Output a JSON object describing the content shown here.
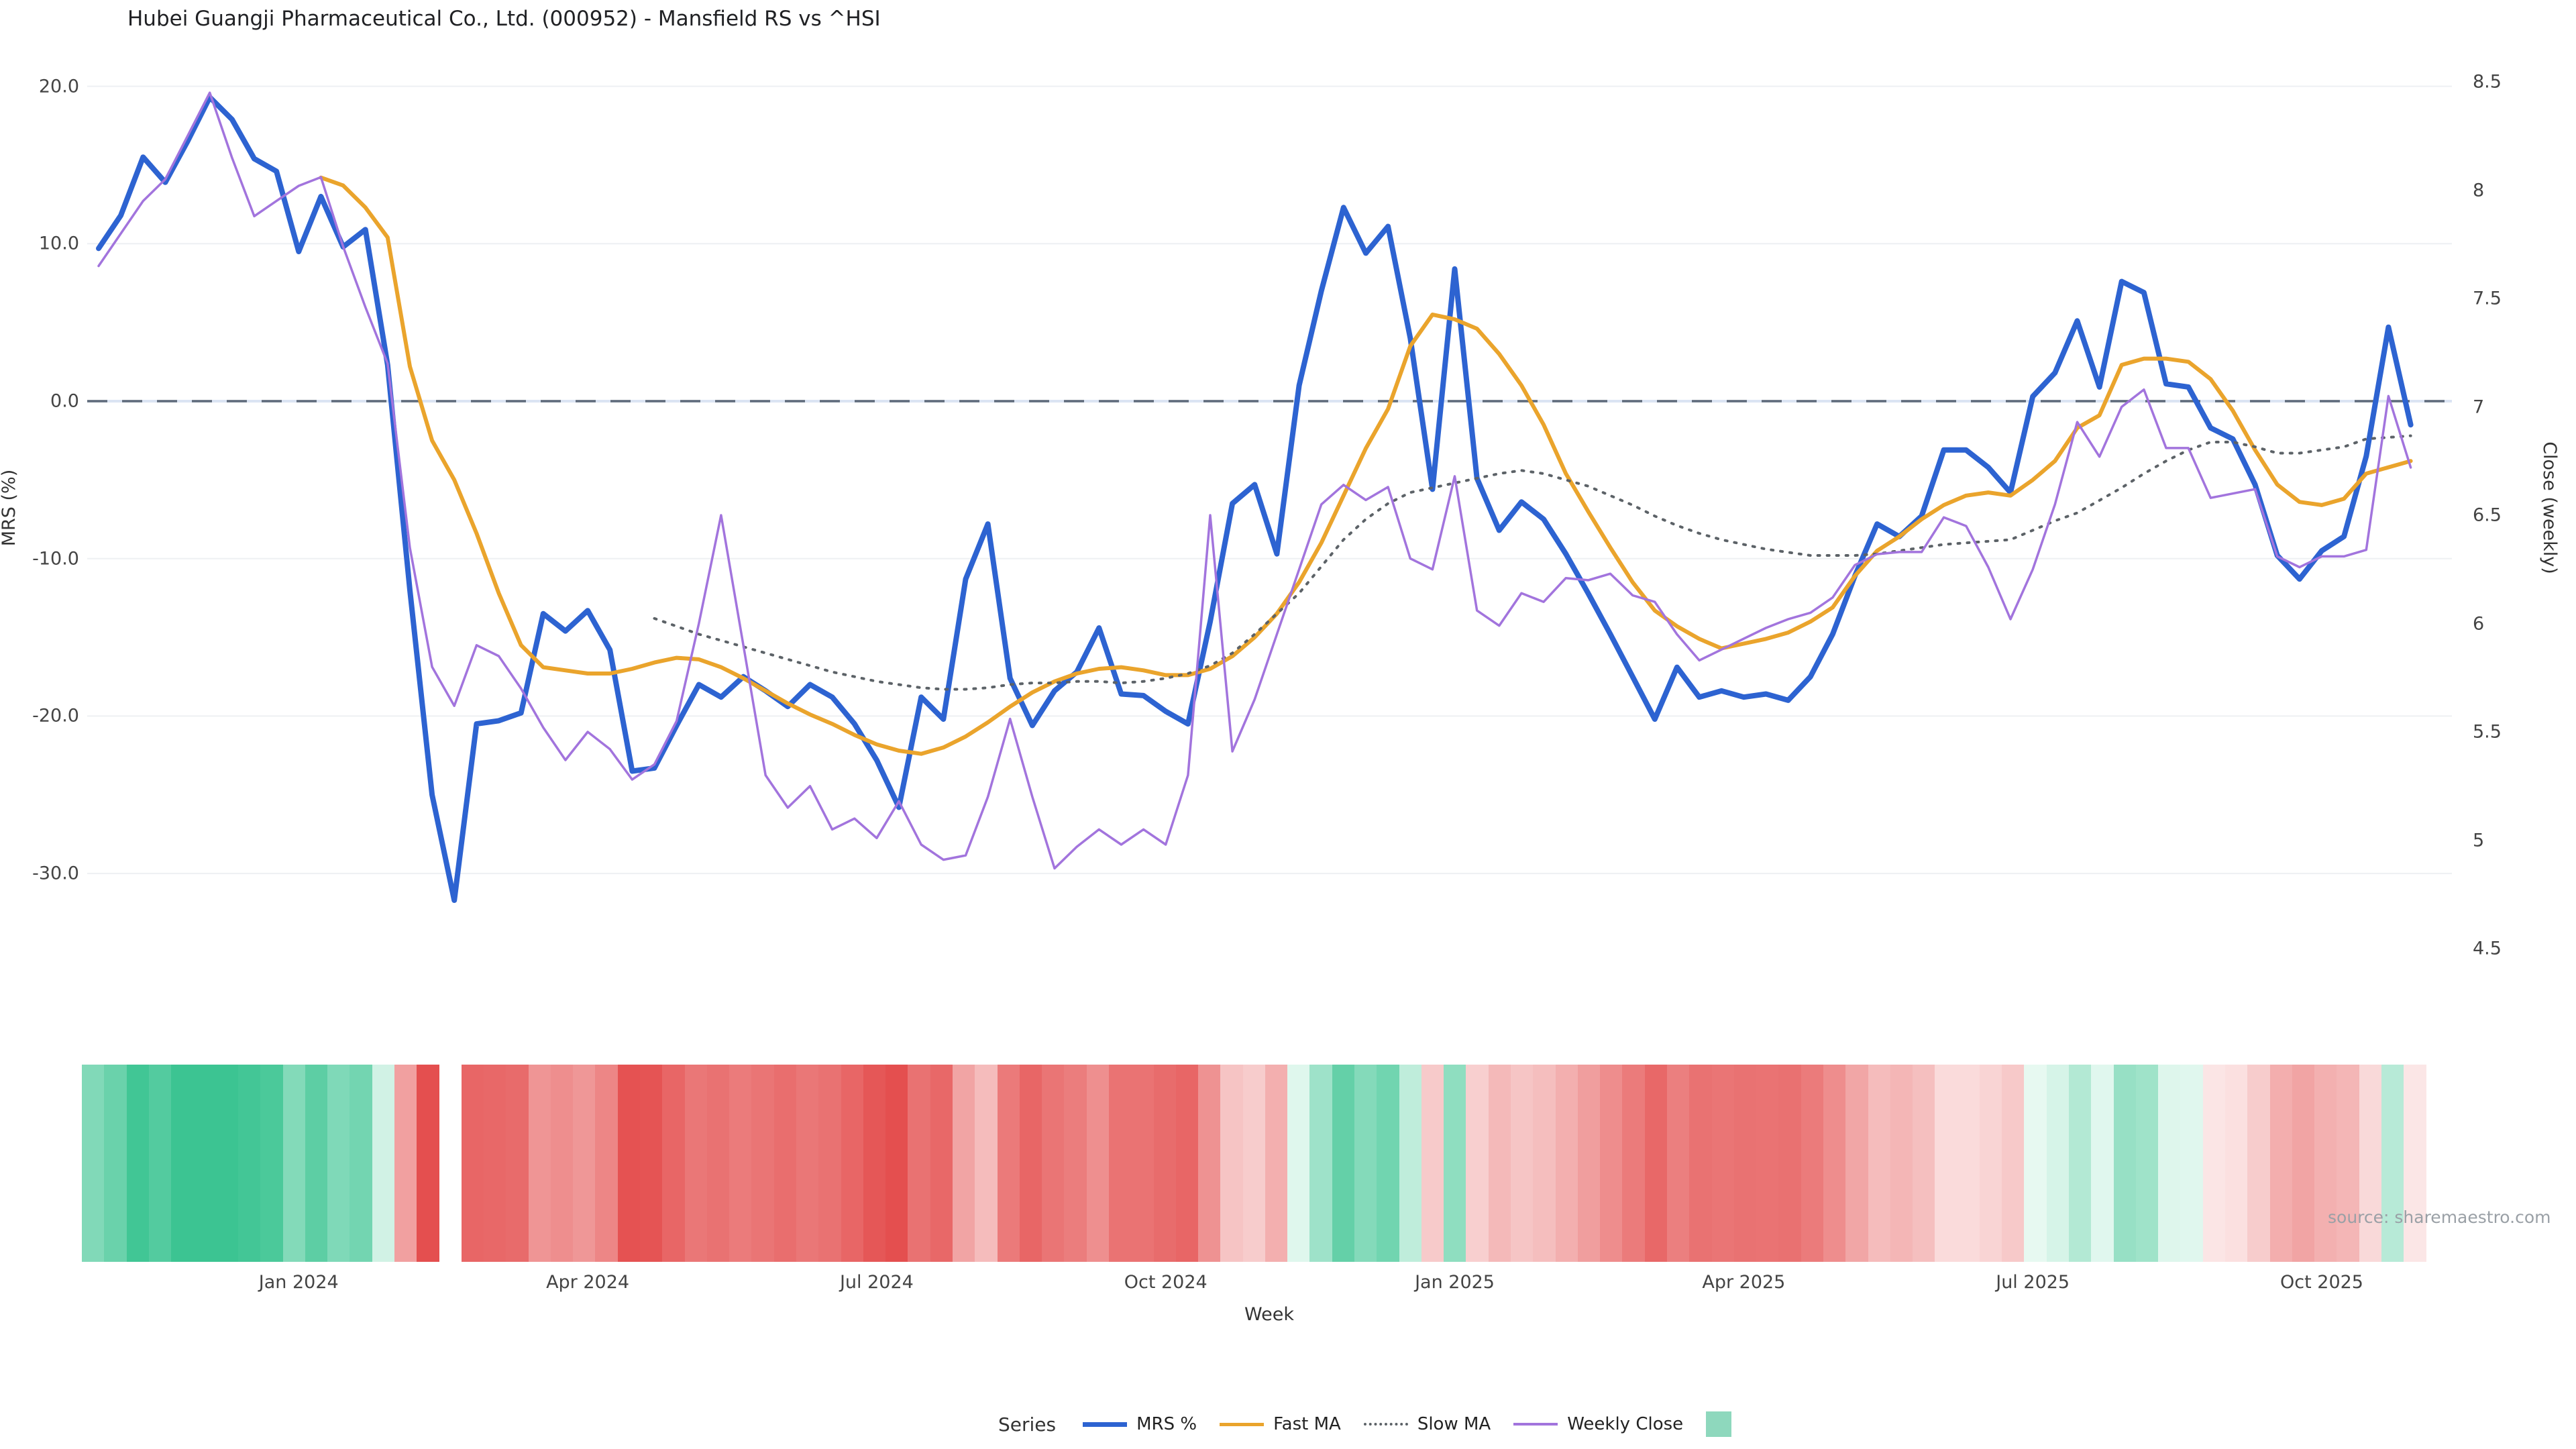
{
  "title": "Hubei Guangji Pharmaceutical Co., Ltd. (000952) - Mansfield RS vs ^HSI",
  "source_note": "source: sharemaestro.com",
  "axes": {
    "left": {
      "label": "MRS (%)",
      "ticks": [
        20.0,
        10.0,
        0.0,
        -10.0,
        -20.0,
        -30.0
      ]
    },
    "right": {
      "label": "Close (weekly)",
      "ticks": [
        8.5,
        8,
        7.5,
        7,
        6.5,
        6,
        5.5,
        5,
        4.5
      ]
    },
    "x": {
      "label": "Week",
      "tick_labels": [
        "Jan 2024",
        "Apr 2024",
        "Jul 2024",
        "Oct 2024",
        "Jan 2025",
        "Apr 2025",
        "Jul 2025",
        "Oct 2025"
      ],
      "tick_weeks": [
        9,
        22,
        35,
        48,
        61,
        74,
        87,
        100
      ]
    }
  },
  "legend": {
    "title": "Series",
    "items": [
      {
        "label": "MRS %",
        "swatch": "line",
        "color": "#2d63d1",
        "thickness": 7,
        "dash": ""
      },
      {
        "label": "Fast MA",
        "swatch": "line",
        "color": "#eaa42c",
        "thickness": 5,
        "dash": ""
      },
      {
        "label": "Slow MA",
        "swatch": "dotted",
        "color": "#5c6267",
        "thickness": 4,
        "dash": "3 9"
      },
      {
        "label": "Weekly Close",
        "swatch": "line",
        "color": "#a274dd",
        "thickness": 4,
        "dash": ""
      },
      {
        "label": "",
        "swatch": "square",
        "color": "#8ed8bd"
      }
    ]
  },
  "colors": {
    "mrs_line": "#2d63d1",
    "fast_ma": "#eaa42c",
    "slow_ma": "#5c6267",
    "weekly_close": "#a274dd",
    "zero_dash": "#5f6b7b",
    "zero_underlay": "#dbe4f3",
    "gridline": "#eef0f3",
    "heat_green_strong": "#3cc492",
    "heat_green_pale": "#eafaf3",
    "heat_red_strong": "#e44f4f",
    "heat_red_pale": "#fdf0f0",
    "heat_gap": "#ffffff"
  },
  "chart_data": {
    "type": "line",
    "x_unit": "week_index",
    "n_weeks": 105,
    "left_axis_range": [
      -35,
      22
    ],
    "right_axis_range": [
      4.5,
      8.5
    ],
    "grid": true,
    "zero_reference_line": 0.0,
    "series": [
      {
        "name": "MRS %",
        "axis": "left",
        "style": "solid",
        "values": [
          9.7,
          11.8,
          15.5,
          13.9,
          16.5,
          19.3,
          17.9,
          15.4,
          14.6,
          9.5,
          13.0,
          9.8,
          10.9,
          2.3,
          -12.0,
          -25.0,
          -31.7,
          -20.5,
          -20.3,
          -19.8,
          -13.5,
          -14.6,
          -13.3,
          -15.8,
          -23.5,
          -23.3,
          -20.6,
          -18.0,
          -18.8,
          -17.5,
          -18.4,
          -19.4,
          -18.0,
          -18.8,
          -20.5,
          -22.8,
          -25.8,
          -18.8,
          -20.2,
          -11.3,
          -7.8,
          -17.6,
          -20.6,
          -18.4,
          -17.2,
          -14.4,
          -18.6,
          -18.7,
          -19.7,
          -20.5,
          -14.0,
          -6.5,
          -5.3,
          -9.7,
          1.0,
          7.0,
          12.3,
          9.4,
          11.1,
          4.0,
          -5.6,
          8.4,
          -4.9,
          -8.2,
          -6.4,
          -7.5,
          -9.7,
          -12.2,
          -14.8,
          -17.5,
          -20.2,
          -16.9,
          -18.8,
          -18.4,
          -18.8,
          -18.6,
          -19.0,
          -17.5,
          -14.8,
          -11.1,
          -7.8,
          -8.6,
          -7.3,
          -3.1,
          -3.1,
          -4.2,
          -5.8,
          0.3,
          1.8,
          5.1,
          0.9,
          7.6,
          6.9,
          1.1,
          0.9,
          -1.7,
          -2.4,
          -5.3,
          -9.8,
          -11.3,
          -9.5,
          -8.6,
          -3.5,
          4.7,
          -1.5
        ]
      },
      {
        "name": "Fast MA",
        "axis": "left",
        "style": "solid",
        "values": [
          null,
          null,
          null,
          null,
          null,
          null,
          null,
          null,
          null,
          null,
          14.2,
          13.7,
          12.3,
          10.4,
          2.2,
          -2.5,
          -5.0,
          -8.4,
          -12.2,
          -15.5,
          -16.9,
          -17.1,
          -17.3,
          -17.3,
          -17.0,
          -16.6,
          -16.3,
          -16.4,
          -16.9,
          -17.6,
          -18.4,
          -19.2,
          -19.9,
          -20.5,
          -21.2,
          -21.8,
          -22.2,
          -22.4,
          -22.0,
          -21.3,
          -20.4,
          -19.4,
          -18.5,
          -17.8,
          -17.3,
          -17.0,
          -16.9,
          -17.1,
          -17.4,
          -17.4,
          -17.0,
          -16.2,
          -15.0,
          -13.5,
          -11.5,
          -9.0,
          -6.0,
          -3.0,
          -0.5,
          3.5,
          5.5,
          5.2,
          4.6,
          3.0,
          1.0,
          -1.5,
          -4.6,
          -7.0,
          -9.3,
          -11.5,
          -13.3,
          -14.3,
          -15.1,
          -15.7,
          -15.4,
          -15.1,
          -14.7,
          -14.0,
          -13.1,
          -11.1,
          -9.5,
          -8.6,
          -7.5,
          -6.6,
          -6.0,
          -5.8,
          -6.0,
          -5.0,
          -3.8,
          -1.7,
          -0.9,
          2.3,
          2.7,
          2.7,
          2.5,
          1.4,
          -0.6,
          -3.1,
          -5.3,
          -6.4,
          -6.6,
          -6.2,
          -4.6,
          -4.2,
          -3.8
        ]
      },
      {
        "name": "Slow MA",
        "axis": "left",
        "style": "dotted",
        "values": [
          null,
          null,
          null,
          null,
          null,
          null,
          null,
          null,
          null,
          null,
          null,
          null,
          null,
          null,
          null,
          null,
          null,
          null,
          null,
          null,
          null,
          null,
          null,
          null,
          null,
          -13.8,
          -14.3,
          -14.8,
          -15.2,
          -15.6,
          -16.0,
          -16.4,
          -16.8,
          -17.2,
          -17.5,
          -17.8,
          -18.0,
          -18.2,
          -18.3,
          -18.3,
          -18.2,
          -18.0,
          -17.9,
          -17.9,
          -17.8,
          -17.8,
          -17.9,
          -17.8,
          -17.6,
          -17.3,
          -16.8,
          -16.0,
          -14.8,
          -13.5,
          -12.2,
          -10.5,
          -8.8,
          -7.5,
          -6.5,
          -5.8,
          -5.5,
          -5.2,
          -4.9,
          -4.6,
          -4.4,
          -4.6,
          -5.0,
          -5.4,
          -6.0,
          -6.6,
          -7.3,
          -7.9,
          -8.4,
          -8.8,
          -9.1,
          -9.4,
          -9.6,
          -9.8,
          -9.8,
          -9.8,
          -9.7,
          -9.5,
          -9.3,
          -9.1,
          -9.0,
          -8.9,
          -8.8,
          -8.2,
          -7.6,
          -7.1,
          -6.3,
          -5.5,
          -4.6,
          -3.8,
          -3.1,
          -2.6,
          -2.6,
          -2.9,
          -3.3,
          -3.3,
          -3.1,
          -2.9,
          -2.4,
          -2.3,
          -2.2
        ]
      },
      {
        "name": "Weekly Close",
        "axis": "right",
        "style": "solid",
        "values": [
          7.65,
          7.8,
          7.95,
          8.05,
          8.25,
          8.45,
          8.15,
          7.88,
          7.95,
          8.02,
          8.06,
          7.74,
          7.46,
          7.2,
          6.35,
          5.8,
          5.62,
          5.9,
          5.85,
          5.7,
          5.52,
          5.37,
          5.5,
          5.42,
          5.28,
          5.35,
          5.55,
          6.0,
          6.5,
          5.9,
          5.3,
          5.15,
          5.25,
          5.05,
          5.1,
          5.01,
          5.18,
          4.98,
          4.91,
          4.93,
          5.2,
          5.56,
          5.2,
          4.87,
          4.97,
          5.05,
          4.98,
          5.05,
          4.98,
          5.3,
          6.5,
          5.41,
          5.65,
          5.95,
          6.25,
          6.55,
          6.64,
          6.57,
          6.63,
          6.3,
          6.25,
          6.68,
          6.06,
          5.99,
          6.14,
          6.1,
          6.21,
          6.2,
          6.23,
          6.13,
          6.1,
          5.95,
          5.83,
          5.88,
          5.93,
          5.98,
          6.02,
          6.05,
          6.12,
          6.27,
          6.32,
          6.33,
          6.33,
          6.49,
          6.45,
          6.26,
          6.02,
          6.25,
          6.55,
          6.93,
          6.77,
          7.0,
          7.08,
          6.81,
          6.81,
          6.58,
          6.6,
          6.62,
          6.31,
          6.26,
          6.31,
          6.31,
          6.34,
          7.05,
          6.72
        ]
      }
    ],
    "heat_strip": {
      "description": "one band per week colored by MRS sign/magnitude",
      "source_series": "MRS %",
      "gap_weeks": [
        16
      ],
      "positive_cap": 16,
      "negative_cap": -24
    }
  }
}
